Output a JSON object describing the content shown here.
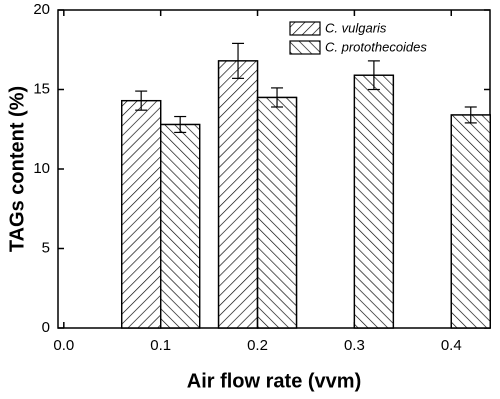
{
  "chart_data": {
    "type": "bar",
    "x_label": "Air flow rate (vvm)",
    "y_label": "TAGs content (%)",
    "x": [
      0.1,
      0.2,
      0.3,
      0.4
    ],
    "series": [
      {
        "name": "C. vulgaris",
        "color": "#000000",
        "hatch": "/",
        "values": [
          14.3,
          16.8,
          null,
          null
        ],
        "errors": [
          0.6,
          1.1,
          null,
          null
        ]
      },
      {
        "name": "C. protothecoides",
        "color": "#000000",
        "hatch": "\\",
        "values": [
          12.8,
          14.5,
          15.9,
          13.4
        ],
        "errors": [
          0.5,
          0.6,
          0.9,
          0.5
        ]
      }
    ],
    "xlim": [
      -0.006,
      0.44
    ],
    "xticks": [
      {
        "value": 0,
        "label": "0.0"
      },
      0.1,
      0.2,
      0.3,
      0.4
    ],
    "ylim": [
      0,
      20
    ],
    "yticks": [
      0,
      5,
      10,
      15,
      20
    ],
    "legend": "upper center"
  }
}
